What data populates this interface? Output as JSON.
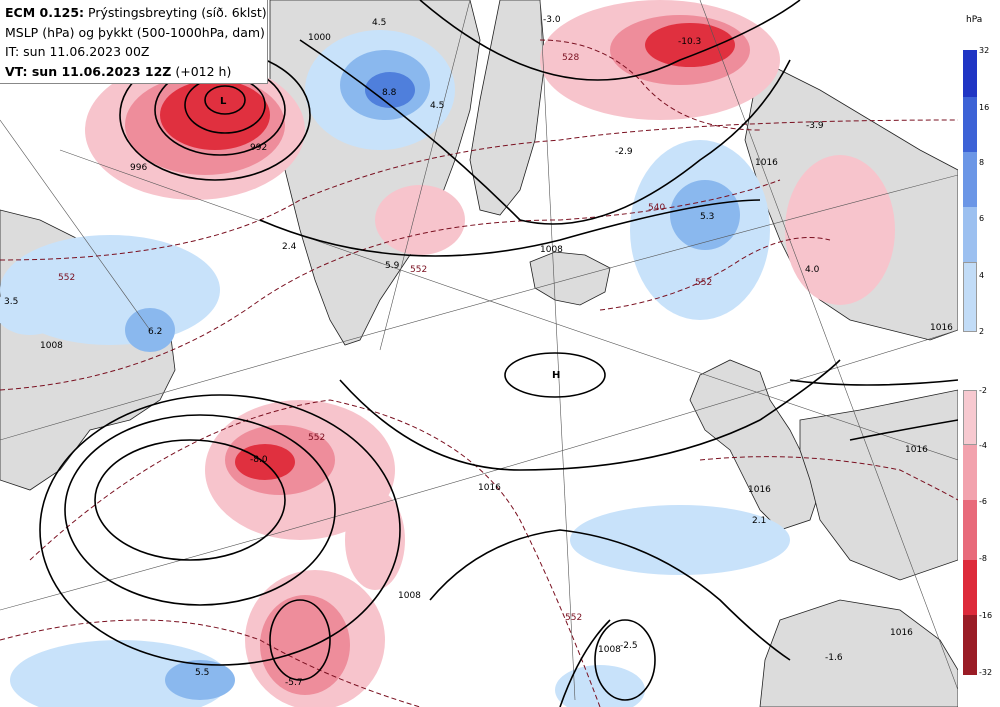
{
  "header": {
    "model_prefix": "ECM 0.125:",
    "model_rest": "Prýstingsbreyting (síð. 6klst)",
    "line2": "MSLP (hPa) og þykkt (500-1000hPa, dam)",
    "line3": "IT: sun 11.06.2023 00Z",
    "vt_prefix": "VT: sun 11.06.2023 12Z",
    "vt_suffix": "(+012 h)"
  },
  "legend": {
    "unit": "hPa",
    "rising": [
      {
        "label": "32",
        "color": "#1f35c4"
      },
      {
        "label": "16",
        "color": "#3c62d6"
      },
      {
        "label": "8",
        "color": "#6b96e6"
      },
      {
        "label": "6",
        "color": "#9cc0f0"
      },
      {
        "label": "4",
        "color": "#c2dcf7"
      },
      {
        "label": "2",
        "color": ""
      }
    ],
    "falling": [
      {
        "label": "-2",
        "color": "#f7c9d0"
      },
      {
        "label": "-4",
        "color": "#f2a2ad"
      },
      {
        "label": "-6",
        "color": "#e86a7a"
      },
      {
        "label": "-8",
        "color": "#dd2a3a"
      },
      {
        "label": "-16",
        "color": "#9a1c26"
      },
      {
        "label": "-32",
        "color": ""
      }
    ]
  },
  "map": {
    "colors": {
      "land": "#dcdcdc",
      "sea": "#ffffff",
      "isobar": "#000000",
      "thickness": "#7a1020",
      "rise_light": "#c8e2fa",
      "rise_mid": "#8ab8ee",
      "rise_dark": "#4f7fdc",
      "fall_light": "#f7c4cc",
      "fall_mid": "#ee8d9b",
      "fall_dark": "#e0303f"
    },
    "isobar_labels": [
      "1000",
      "1008",
      "1008",
      "1016",
      "1016",
      "1016",
      "1008",
      "1008",
      "1016",
      "1016",
      "1016",
      "996",
      "992"
    ],
    "thickness_labels": [
      "552",
      "552",
      "528",
      "540",
      "552",
      "552",
      "552"
    ],
    "change_values": [
      "-10.3",
      "-8.0",
      "-5.7",
      "-3.9",
      "-3.0",
      "-2.9",
      "-2.5",
      "-1.6",
      "2.1",
      "2.4",
      "3.5",
      "4.0",
      "4.5",
      "4.5",
      "5.3",
      "5.5",
      "6.2",
      "8.8",
      "5.9"
    ]
  }
}
